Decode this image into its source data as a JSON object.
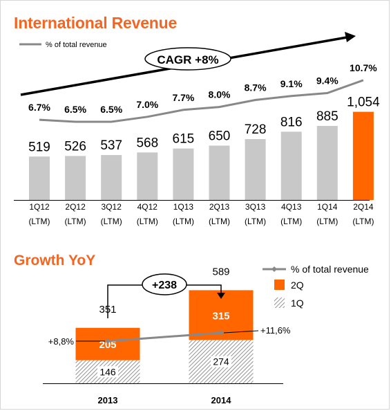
{
  "chart_data": [
    {
      "type": "bar",
      "title": "International Revenue",
      "categories": [
        "1Q12\n(LTM)",
        "2Q12\n(LTM)",
        "3Q12\n(LTM)",
        "4Q12\n(LTM)",
        "1Q13\n(LTM)",
        "2Q13\n(LTM)",
        "3Q13\n(LTM)",
        "4Q13\n(LTM)",
        "1Q14\n(LTM)",
        "2Q14\n(LTM)"
      ],
      "values": [
        519,
        526,
        537,
        568,
        615,
        650,
        728,
        816,
        885,
        1054
      ],
      "value_labels": [
        "519",
        "526",
        "537",
        "568",
        "615",
        "650",
        "728",
        "816",
        "885",
        "1,054"
      ],
      "line_series": {
        "name": "% of total revenue",
        "values": [
          6.7,
          6.5,
          6.5,
          7.0,
          7.7,
          8.0,
          8.7,
          9.1,
          9.4,
          10.7
        ],
        "labels": [
          "6.7%",
          "6.5%",
          "6.5%",
          "7.0%",
          "7.7%",
          "8.0%",
          "8.7%",
          "9.1%",
          "9.4%",
          "10.7%"
        ]
      },
      "legend": {
        "line_label": "% of total revenue",
        "position": "top-left"
      },
      "annotation": "CAGR +8%",
      "colors": {
        "bar": "#c8c8c8",
        "highlight_bar": "#ff6600",
        "line": "#888888",
        "title": "#f26522"
      }
    },
    {
      "type": "bar",
      "stacked": true,
      "title": "Growth YoY",
      "categories": [
        "2013",
        "2014"
      ],
      "series": [
        {
          "name": "1Q",
          "values": [
            146,
            274
          ]
        },
        {
          "name": "2Q",
          "values": [
            205,
            315
          ]
        }
      ],
      "totals": [
        "351",
        "589"
      ],
      "line_series": {
        "name": "% of total revenue",
        "labels": [
          "+8,8%",
          "+11,6%"
        ]
      },
      "difference_label": "+238",
      "legend": {
        "items": [
          "% of total revenue",
          "2Q",
          "1Q"
        ],
        "position": "top-right"
      },
      "colors": {
        "2Q": "#ff6600",
        "1Q_hatch": "#777777",
        "line": "#888888"
      }
    }
  ]
}
